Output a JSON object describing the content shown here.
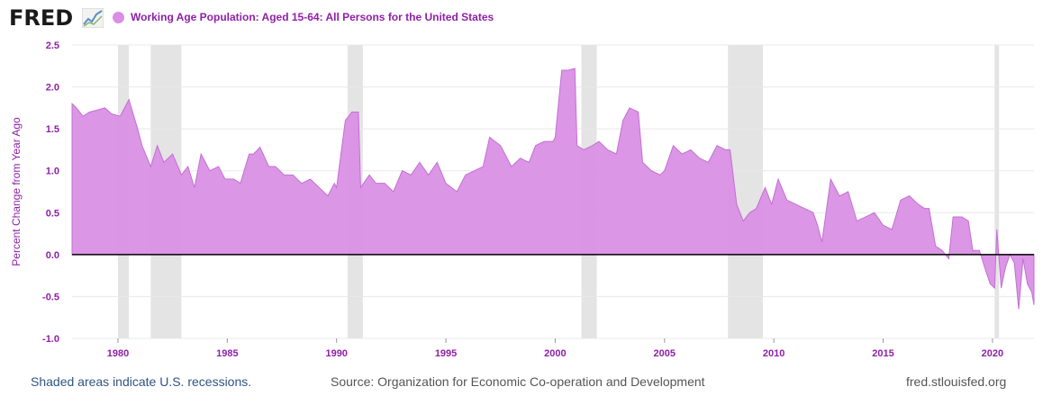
{
  "header": {
    "logo_text": "FRED",
    "logo_icon": "trend-line-icon",
    "series_title": "Working Age Population: Aged 15-64: All Persons for the United States"
  },
  "colors": {
    "series": "#d990e4",
    "series_line": "#c46fd4",
    "title": "#8f1fa8",
    "recession": "#e4e4e4",
    "zero_line": "#000000",
    "grid": "#e8e8e8"
  },
  "chart_data": {
    "type": "area",
    "ylabel": "Percent Change from Year Ago",
    "ylim": [
      -1.0,
      2.5
    ],
    "yticks": [
      "2.5",
      "2.0",
      "1.5",
      "1.0",
      "0.5",
      "0.0",
      "-0.5",
      "-1.0"
    ],
    "xlim": [
      1977.9,
      2021.9
    ],
    "xticks": [
      "1980",
      "1985",
      "1990",
      "1995",
      "2000",
      "2005",
      "2010",
      "2015",
      "2020"
    ],
    "grid": true,
    "legend": "top-left",
    "recessions": [
      [
        1980.0,
        1980.5
      ],
      [
        1981.5,
        1982.9
      ],
      [
        1990.5,
        1991.2
      ],
      [
        2001.2,
        2001.9
      ],
      [
        2007.9,
        2009.5
      ],
      [
        2020.1,
        2020.3
      ]
    ],
    "x": [
      1977.9,
      1978.1,
      1978.4,
      1978.7,
      1979.0,
      1979.4,
      1979.7,
      1980.1,
      1980.5,
      1980.9,
      1981.1,
      1981.5,
      1981.8,
      1982.1,
      1982.5,
      1982.9,
      1983.2,
      1983.5,
      1983.8,
      1984.2,
      1984.6,
      1984.9,
      1985.3,
      1985.6,
      1986.0,
      1986.2,
      1986.5,
      1986.9,
      1987.2,
      1987.6,
      1988.0,
      1988.4,
      1988.8,
      1989.2,
      1989.6,
      1989.9,
      1990.0,
      1990.4,
      1990.7,
      1991.0,
      1991.1,
      1991.5,
      1991.8,
      1992.2,
      1992.6,
      1993.0,
      1993.4,
      1993.8,
      1994.2,
      1994.6,
      1995.0,
      1995.5,
      1995.9,
      1996.3,
      1996.7,
      1997.0,
      1997.5,
      1998.0,
      1998.4,
      1998.8,
      1999.1,
      1999.5,
      1999.9,
      2000.0,
      2000.3,
      2000.6,
      2000.9,
      2001.0,
      2001.3,
      2001.7,
      2002.0,
      2002.4,
      2002.8,
      2003.1,
      2003.4,
      2003.8,
      2004.0,
      2004.4,
      2004.8,
      2005.0,
      2005.4,
      2005.8,
      2006.2,
      2006.6,
      2007.0,
      2007.4,
      2007.8,
      2008.0,
      2008.3,
      2008.6,
      2008.9,
      2009.2,
      2009.6,
      2009.9,
      2010.2,
      2010.6,
      2011.0,
      2011.4,
      2011.8,
      2012.0,
      2012.2,
      2012.6,
      2013.0,
      2013.4,
      2013.8,
      2014.2,
      2014.6,
      2015.0,
      2015.4,
      2015.8,
      2016.2,
      2016.6,
      2016.9,
      2017.1,
      2017.4,
      2017.7,
      2018.0,
      2018.2,
      2018.6,
      2018.9,
      2019.1,
      2019.4,
      2019.7,
      2019.9,
      2020.1,
      2020.2,
      2020.4,
      2020.6,
      2020.8,
      2021.0,
      2021.2,
      2021.4,
      2021.6,
      2021.8,
      2021.9
    ],
    "y": [
      1.8,
      1.75,
      1.65,
      1.7,
      1.72,
      1.75,
      1.68,
      1.65,
      1.85,
      1.5,
      1.3,
      1.05,
      1.3,
      1.1,
      1.2,
      0.95,
      1.05,
      0.8,
      1.2,
      1.0,
      1.05,
      0.9,
      0.9,
      0.85,
      1.2,
      1.2,
      1.28,
      1.05,
      1.05,
      0.95,
      0.95,
      0.85,
      0.9,
      0.8,
      0.7,
      0.85,
      0.8,
      1.6,
      1.7,
      1.7,
      0.8,
      0.95,
      0.85,
      0.85,
      0.75,
      1.0,
      0.95,
      1.1,
      0.95,
      1.1,
      0.85,
      0.75,
      0.95,
      1.0,
      1.05,
      1.4,
      1.3,
      1.05,
      1.15,
      1.1,
      1.3,
      1.35,
      1.35,
      1.4,
      2.2,
      2.2,
      2.22,
      1.3,
      1.25,
      1.3,
      1.35,
      1.25,
      1.2,
      1.6,
      1.75,
      1.7,
      1.1,
      1.0,
      0.95,
      1.0,
      1.3,
      1.2,
      1.25,
      1.15,
      1.1,
      1.3,
      1.25,
      1.25,
      0.6,
      0.4,
      0.5,
      0.55,
      0.8,
      0.6,
      0.9,
      0.65,
      0.6,
      0.55,
      0.5,
      0.35,
      0.15,
      0.9,
      0.7,
      0.75,
      0.4,
      0.45,
      0.5,
      0.35,
      0.3,
      0.65,
      0.7,
      0.6,
      0.55,
      0.55,
      0.1,
      0.05,
      -0.05,
      0.45,
      0.45,
      0.4,
      0.05,
      0.05,
      -0.2,
      -0.35,
      -0.4,
      0.3,
      -0.4,
      -0.15,
      0.0,
      -0.1,
      -0.65,
      -0.05,
      -0.35,
      -0.45,
      -0.6
    ]
  },
  "footer": {
    "recession_note": "Shaded areas indicate U.S. recessions.",
    "source": "Source: Organization for Economic Co-operation and Development",
    "site": "fred.stlouisfed.org"
  }
}
